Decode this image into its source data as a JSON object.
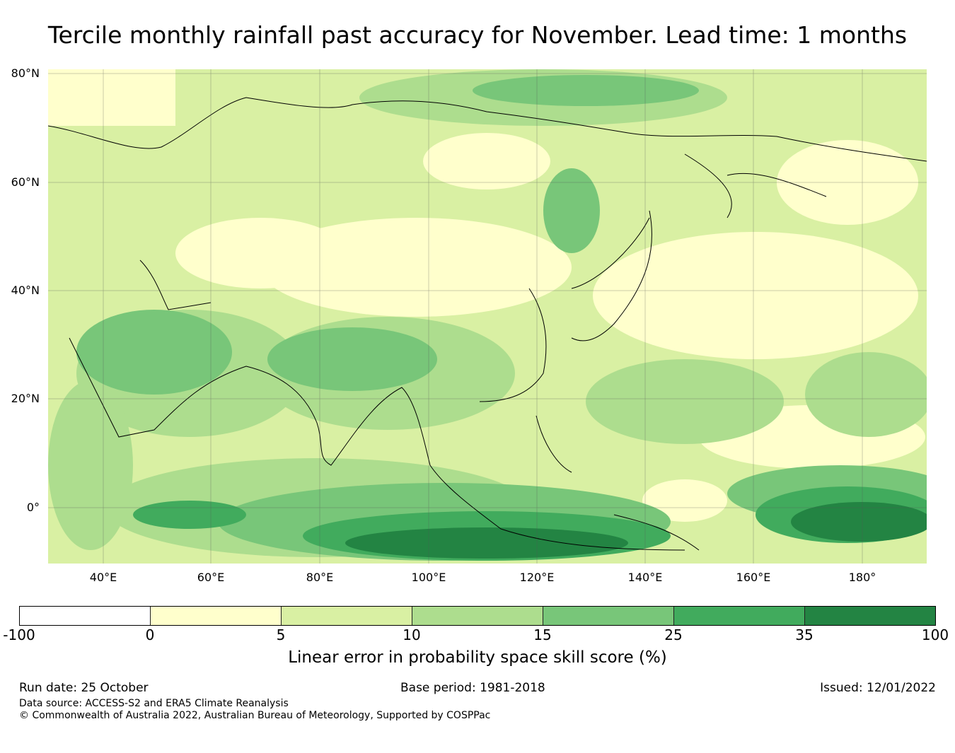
{
  "title": "Tercile monthly rainfall past accuracy for November. Lead time: 1 months",
  "map": {
    "region": "Asia and Western Pacific",
    "lat_labels": [
      "80°N",
      "60°N",
      "40°N",
      "20°N",
      "0°"
    ],
    "lon_labels": [
      "40°E",
      "60°E",
      "80°E",
      "100°E",
      "120°E",
      "140°E",
      "160°E",
      "180°"
    ],
    "field": "LEPS skill score"
  },
  "colorbar": {
    "ticks": [
      "-100",
      "0",
      "5",
      "10",
      "15",
      "25",
      "35",
      "100"
    ],
    "colors": [
      "#ffffff",
      "#ffffcc",
      "#d9f0a3",
      "#addd8e",
      "#78c679",
      "#41ab5d",
      "#238443"
    ],
    "label": "Linear error in probability space skill score (%)"
  },
  "footer": {
    "run_date": "Run date: 25 October",
    "base_period": "Base period: 1981-2018",
    "issued": "Issued: 12/01/2022",
    "data_source": "Data source: ACCESS-S2 and ERA5 Climate Reanalysis",
    "copyright": "© Commonwealth of Australia 2022, Australian Bureau of Meteorology, Supported by COSPPac"
  }
}
